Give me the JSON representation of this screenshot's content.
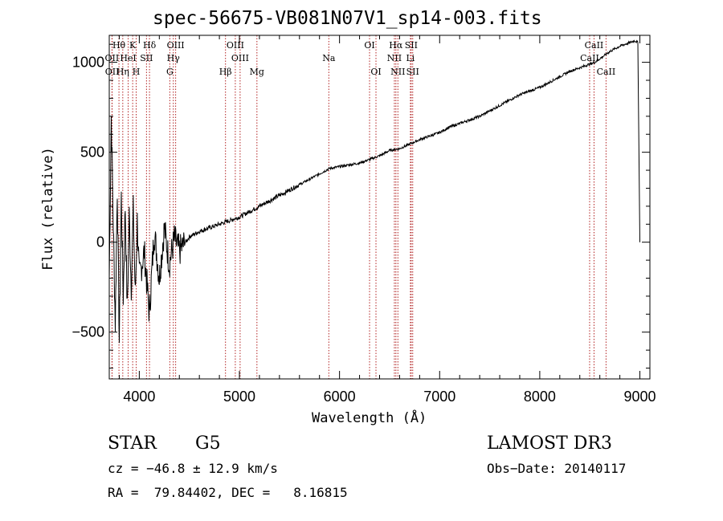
{
  "chart_data": {
    "type": "line",
    "title": "spec-56675-VB081N07V1_sp14-003.fits",
    "xlabel": "Wavelength (Å)",
    "ylabel": "Flux (relative)",
    "xlim": [
      3700,
      9100
    ],
    "ylim": [
      -760,
      1150
    ],
    "xticks": [
      4000,
      5000,
      6000,
      7000,
      8000,
      9000
    ],
    "yticks": [
      -500,
      0,
      500,
      1000
    ],
    "xtick_labels": [
      "4000",
      "5000",
      "6000",
      "7000",
      "8000",
      "9000"
    ],
    "ytick_labels": [
      "−500",
      "0",
      "500",
      "1000"
    ],
    "series": [
      {
        "name": "flux",
        "x": [
          3700,
          3720,
          3740,
          3760,
          3780,
          3800,
          3820,
          3840,
          3860,
          3880,
          3900,
          3920,
          3940,
          3960,
          3980,
          4000,
          4050,
          4100,
          4150,
          4200,
          4250,
          4300,
          4350,
          4400,
          4500,
          4600,
          4700,
          4800,
          4900,
          5000,
          5100,
          5200,
          5300,
          5400,
          5500,
          5600,
          5700,
          5800,
          5900,
          6000,
          6100,
          6200,
          6300,
          6400,
          6500,
          6600,
          6700,
          6800,
          6900,
          7000,
          7100,
          7200,
          7300,
          7400,
          7500,
          7600,
          7700,
          7800,
          7900,
          8000,
          8100,
          8200,
          8300,
          8400,
          8500,
          8550,
          8600,
          8650,
          8700,
          8800,
          8850,
          8900,
          8950,
          8980,
          9000
        ],
        "y": [
          -200,
          700,
          100,
          -450,
          300,
          -550,
          250,
          -300,
          200,
          -380,
          150,
          -250,
          180,
          -300,
          120,
          -200,
          -50,
          -400,
          60,
          -200,
          80,
          -120,
          20,
          -50,
          30,
          60,
          80,
          100,
          120,
          140,
          170,
          200,
          230,
          260,
          290,
          320,
          350,
          380,
          410,
          420,
          430,
          440,
          460,
          480,
          510,
          520,
          545,
          570,
          590,
          610,
          640,
          660,
          680,
          700,
          730,
          760,
          790,
          820,
          840,
          860,
          890,
          920,
          950,
          970,
          990,
          1000,
          1020,
          1040,
          1060,
          1090,
          1100,
          1110,
          1120,
          1110,
          0
        ]
      }
    ],
    "spectral_lines": [
      {
        "label": "Hθ",
        "x": 3797
      },
      {
        "label": "K",
        "x": 3934
      },
      {
        "label": "Hδ",
        "x": 4102
      },
      {
        "label": "OIII",
        "x": 4363
      },
      {
        "label": "OIII",
        "x": 4959
      },
      {
        "label": "OI",
        "x": 6300
      },
      {
        "label": "Hα",
        "x": 6563
      },
      {
        "label": "SII",
        "x": 6716
      },
      {
        "label": "CaII",
        "x": 8542
      },
      {
        "label": "OII",
        "x": 3727
      },
      {
        "label": "HeI",
        "x": 3889
      },
      {
        "label": "SII",
        "x": 4072
      },
      {
        "label": "Hγ",
        "x": 4340
      },
      {
        "label": "OIII",
        "x": 5007
      },
      {
        "label": "Na",
        "x": 5893
      },
      {
        "label": "NII",
        "x": 6548
      },
      {
        "label": "Li",
        "x": 6708
      },
      {
        "label": "CaII",
        "x": 8498
      },
      {
        "label": "OII",
        "x": 3729
      },
      {
        "label": "Hη",
        "x": 3835
      },
      {
        "label": "H",
        "x": 3969
      },
      {
        "label": "G",
        "x": 4305
      },
      {
        "label": "Hβ",
        "x": 4861
      },
      {
        "label": "Mg",
        "x": 5175
      },
      {
        "label": "OI",
        "x": 6364
      },
      {
        "label": "NII",
        "x": 6583
      },
      {
        "label": "SII",
        "x": 6731
      },
      {
        "label": "CaII",
        "x": 8662
      }
    ]
  },
  "info": {
    "class_label": "STAR",
    "subclass_label": "G5",
    "survey": "LAMOST DR3",
    "redshift": "cz = −46.8 ± 12.9 km/s",
    "obs_date": "Obs−Date: 20140117",
    "coords": "RA =  79.84402, DEC =   8.16815"
  },
  "colors": {
    "line": "#000000",
    "marker": "#b22222"
  }
}
